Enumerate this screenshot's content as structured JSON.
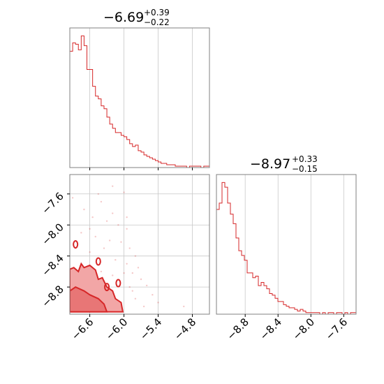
{
  "colors": {
    "accent": "#d62728",
    "grid": "#c8c8c8",
    "frame": "#808080",
    "fill_light": "#f2a6a6",
    "fill_mid": "#e87676"
  },
  "chart_data": [
    {
      "type": "histogram",
      "panel": "param1-marginal",
      "title": {
        "value": "−6.69",
        "plus": "+0.39",
        "minus": "−0.22"
      },
      "xlim": [
        -6.95,
        -4.5
      ],
      "xticks": [
        -6.6,
        -6.0,
        -5.4,
        -4.8
      ],
      "xtick_labels": [
        "−6.6",
        "−6.0",
        "−5.4",
        "−4.8"
      ],
      "grid": true,
      "bins": {
        "start": -6.95,
        "width": 0.05,
        "counts": [
          83,
          89,
          88,
          84,
          94,
          87,
          70,
          70,
          58,
          51,
          49,
          44,
          42,
          36,
          31,
          28,
          25,
          25,
          23,
          22,
          20,
          17,
          15,
          16,
          12,
          11,
          9,
          8,
          7,
          6,
          5,
          4,
          3,
          3,
          2,
          2,
          2,
          1,
          1,
          1,
          1,
          0,
          1,
          1,
          1,
          1,
          0,
          1,
          1
        ]
      }
    },
    {
      "type": "histogram",
      "panel": "param2-marginal",
      "title": {
        "value": "−8.97",
        "plus": "+0.33",
        "minus": "−0.15"
      },
      "xlim": [
        -9.15,
        -7.45
      ],
      "xticks": [
        -8.8,
        -8.4,
        -8.0,
        -7.6
      ],
      "xtick_labels": [
        "−8.8",
        "−8.4",
        "−8.0",
        "−7.6"
      ],
      "grid": true,
      "bins": {
        "start": -9.15,
        "width": 0.034,
        "counts": [
          66,
          70,
          83,
          80,
          70,
          63,
          57,
          48,
          40,
          37,
          34,
          26,
          26,
          23,
          24,
          18,
          20,
          18,
          16,
          13,
          12,
          10,
          8,
          8,
          6,
          5,
          4,
          4,
          3,
          2,
          3,
          2,
          1,
          1,
          1,
          1,
          1,
          0,
          1,
          0,
          1,
          1,
          0,
          1,
          1,
          0,
          1,
          0,
          1,
          1
        ]
      }
    },
    {
      "type": "contour",
      "panel": "joint-2d",
      "xlim": [
        -6.95,
        -4.5
      ],
      "ylim": [
        -9.15,
        -7.35
      ],
      "xticks": [
        -6.6,
        -6.0,
        -5.4,
        -4.8
      ],
      "xtick_labels": [
        "−6.6",
        "−6.0",
        "−5.4",
        "−4.8"
      ],
      "yticks": [
        -7.6,
        -8.0,
        -8.4,
        -8.8
      ],
      "ytick_labels": [
        "−7.6",
        "−8.0",
        "−8.4",
        "−8.8"
      ],
      "grid": true,
      "levels": [
        {
          "level": "outer",
          "points": [
            [
              -6.95,
              -8.57
            ],
            [
              -6.88,
              -8.55
            ],
            [
              -6.8,
              -8.6
            ],
            [
              -6.75,
              -8.5
            ],
            [
              -6.7,
              -8.55
            ],
            [
              -6.6,
              -8.52
            ],
            [
              -6.5,
              -8.58
            ],
            [
              -6.45,
              -8.7
            ],
            [
              -6.38,
              -8.68
            ],
            [
              -6.3,
              -8.8
            ],
            [
              -6.2,
              -8.85
            ],
            [
              -6.15,
              -8.95
            ],
            [
              -6.05,
              -9.0
            ],
            [
              -6.02,
              -9.12
            ],
            [
              -6.95,
              -9.12
            ]
          ]
        },
        {
          "level": "inner",
          "points": [
            [
              -6.95,
              -8.85
            ],
            [
              -6.85,
              -8.8
            ],
            [
              -6.7,
              -8.85
            ],
            [
              -6.6,
              -8.9
            ],
            [
              -6.45,
              -8.95
            ],
            [
              -6.35,
              -9.02
            ],
            [
              -6.3,
              -9.12
            ],
            [
              -6.95,
              -9.12
            ]
          ]
        }
      ],
      "islands": [
        [
          -6.85,
          -8.25
        ],
        [
          -6.3,
          -8.8
        ],
        [
          -6.1,
          -8.75
        ],
        [
          -6.45,
          -8.47
        ]
      ],
      "scatter": [
        [
          -6.2,
          -7.5
        ],
        [
          -6.0,
          -7.58
        ],
        [
          -6.4,
          -7.7
        ],
        [
          -6.7,
          -7.8
        ],
        [
          -6.55,
          -7.9
        ],
        [
          -6.3,
          -7.95
        ],
        [
          -6.1,
          -8.0
        ],
        [
          -5.95,
          -8.05
        ],
        [
          -6.75,
          -8.1
        ],
        [
          -6.5,
          -8.15
        ],
        [
          -6.25,
          -8.2
        ],
        [
          -6.05,
          -8.22
        ],
        [
          -5.9,
          -8.3
        ],
        [
          -6.85,
          -8.3
        ],
        [
          -6.6,
          -8.35
        ],
        [
          -6.35,
          -8.3
        ],
        [
          -5.8,
          -8.4
        ],
        [
          -6.15,
          -8.45
        ],
        [
          -5.95,
          -8.5
        ],
        [
          -5.75,
          -8.55
        ],
        [
          -5.85,
          -8.62
        ],
        [
          -5.7,
          -8.7
        ],
        [
          -5.9,
          -8.8
        ],
        [
          -5.6,
          -8.78
        ],
        [
          -5.5,
          -8.9
        ],
        [
          -5.8,
          -8.95
        ],
        [
          -5.4,
          -9.0
        ],
        [
          -5.65,
          -9.05
        ],
        [
          -4.95,
          -9.05
        ],
        [
          -6.9,
          -7.65
        ],
        [
          -6.45,
          -7.6
        ],
        [
          -6.2,
          -7.85
        ],
        [
          -5.95,
          -7.9
        ],
        [
          -6.6,
          -8.05
        ],
        [
          -6.4,
          -8.6
        ],
        [
          -6.2,
          -8.65
        ],
        [
          -6.0,
          -8.62
        ],
        [
          -5.85,
          -8.85
        ]
      ]
    }
  ]
}
